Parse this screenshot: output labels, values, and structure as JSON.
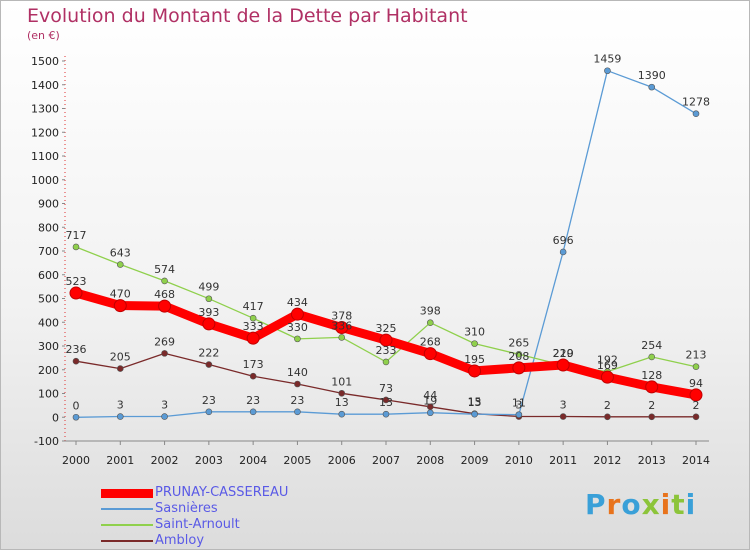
{
  "title": "Evolution du Montant de la Dette par Habitant",
  "unit_label": "(en €)",
  "logo": {
    "text": "Proxiti",
    "letter_colors": [
      "#3aa0d8",
      "#e8731c",
      "#3aa0d8",
      "#8cc43a",
      "#e8731c",
      "#8cc43a",
      "#3aa0d8"
    ]
  },
  "chart_data": {
    "type": "line",
    "title": "Evolution du Montant de la Dette par Habitant",
    "ylabel": "(en €)",
    "xlabel": "",
    "x": [
      "2000",
      "2001",
      "2002",
      "2003",
      "2004",
      "2005",
      "2006",
      "2007",
      "2008",
      "2009",
      "2010",
      "2011",
      "2012",
      "2013",
      "2014"
    ],
    "ylim": [
      -100,
      1500
    ],
    "yticks": [
      -100,
      0,
      100,
      200,
      300,
      400,
      500,
      600,
      700,
      800,
      900,
      1000,
      1100,
      1200,
      1300,
      1400,
      1500
    ],
    "grid": false,
    "legend_position": "bottom-left",
    "series": [
      {
        "name": "PRUNAY-CASSEREAU",
        "color": "#ff0000",
        "values": [
          523,
          470,
          468,
          393,
          333,
          434,
          378,
          325,
          268,
          195,
          208,
          220,
          169,
          128,
          94
        ]
      },
      {
        "name": "Sasnières",
        "color": "#5b9bd5",
        "values": [
          0,
          3,
          3,
          23,
          23,
          23,
          13,
          13,
          19,
          13,
          11,
          696,
          1459,
          1390,
          1278
        ]
      },
      {
        "name": "Saint-Arnoult",
        "color": "#8fd04c",
        "values": [
          717,
          643,
          574,
          499,
          417,
          330,
          336,
          233,
          398,
          310,
          265,
          219,
          192,
          254,
          213
        ]
      },
      {
        "name": "Ambloy",
        "color": "#7a2a2a",
        "values": [
          236,
          205,
          269,
          222,
          173,
          140,
          101,
          73,
          44,
          15,
          3,
          3,
          2,
          2,
          2
        ]
      }
    ]
  }
}
